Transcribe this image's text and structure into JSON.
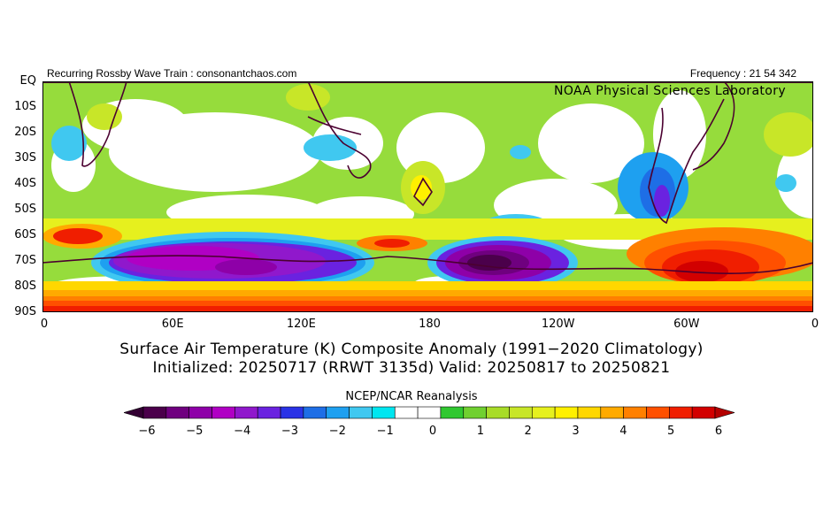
{
  "header": {
    "left": "Recurring Rossby Wave Train : consonantchaos.com",
    "right": "Frequency : 21 54 342",
    "lab": "NOAA  Physical  Sciences  Laboratory"
  },
  "map": {
    "lat_labels": [
      "EQ",
      "10S",
      "20S",
      "30S",
      "40S",
      "50S",
      "60S",
      "70S",
      "80S",
      "90S"
    ],
    "lon_labels": [
      "0",
      "60E",
      "120E",
      "180",
      "120W",
      "60W",
      "0"
    ]
  },
  "title": {
    "line1": "Surface Air Temperature (K) Composite Anomaly (1991−2020 Climatology)",
    "line2": "Initialized: 20250717 (RRWT 3135d) Valid: 20250817 to 20250821"
  },
  "colorbar": {
    "title": "NCEP/NCAR Reanalysis",
    "ticks": [
      "−6",
      "−5",
      "−4",
      "−3",
      "−2",
      "−1",
      "0",
      "1",
      "2",
      "3",
      "4",
      "5",
      "6"
    ],
    "colors": [
      "#4b004b",
      "#6f007f",
      "#8e00a8",
      "#b000c4",
      "#9018cc",
      "#6a22e0",
      "#2a32e6",
      "#1e6ee6",
      "#1ea0f0",
      "#40c8f0",
      "#00e6f0",
      "#ffffff",
      "#ffffff",
      "#30c830",
      "#70d030",
      "#a8dc28",
      "#c8e628",
      "#e6f01e",
      "#fff000",
      "#ffd700",
      "#ffaa00",
      "#ff8000",
      "#ff5000",
      "#f01e00",
      "#d20000"
    ],
    "low_color": "#320032",
    "high_color": "#b40000"
  }
}
